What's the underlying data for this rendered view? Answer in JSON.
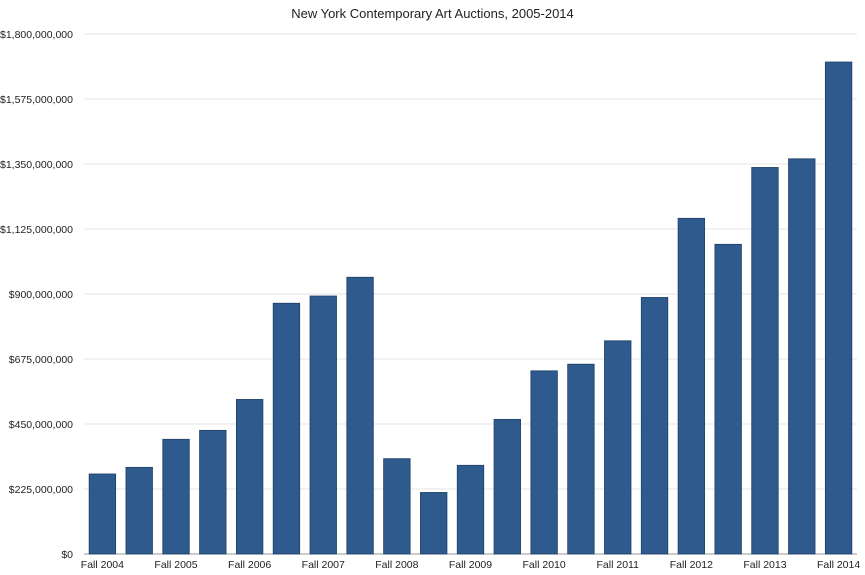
{
  "chart_data": {
    "type": "bar",
    "title": "New York Contemporary Art Auctions, 2005-2014",
    "xlabel": "",
    "ylabel": "",
    "ylim": [
      0,
      1800000000
    ],
    "yticks": [
      0,
      225000000,
      450000000,
      675000000,
      900000000,
      1125000000,
      1350000000,
      1575000000,
      1800000000
    ],
    "ytick_labels": [
      "$0",
      "$225,000,000",
      "$450,000,000",
      "$675,000,000",
      "$900,000,000",
      "$1,125,000,000",
      "$1,350,000,000",
      "$1,575,000,000",
      "$1,800,000,000"
    ],
    "x_tick_labels": [
      "Fall 2004",
      "Fall 2005",
      "Fall 2006",
      "Fall 2007",
      "Fall 2008",
      "Fall 2009",
      "Fall 2010",
      "Fall 2011",
      "Fall 2012",
      "Fall 2013",
      "Fall 2014"
    ],
    "bar_color": "#2e5a8e",
    "grid": true,
    "values": [
      277000000,
      300000000,
      397000000,
      428000000,
      535000000,
      868000000,
      893000000,
      958000000,
      330000000,
      213000000,
      307000000,
      466000000,
      634000000,
      657000000,
      738000000,
      888000000,
      1162000000,
      1072000000,
      1338000000,
      1368000000,
      1703000000
    ]
  }
}
